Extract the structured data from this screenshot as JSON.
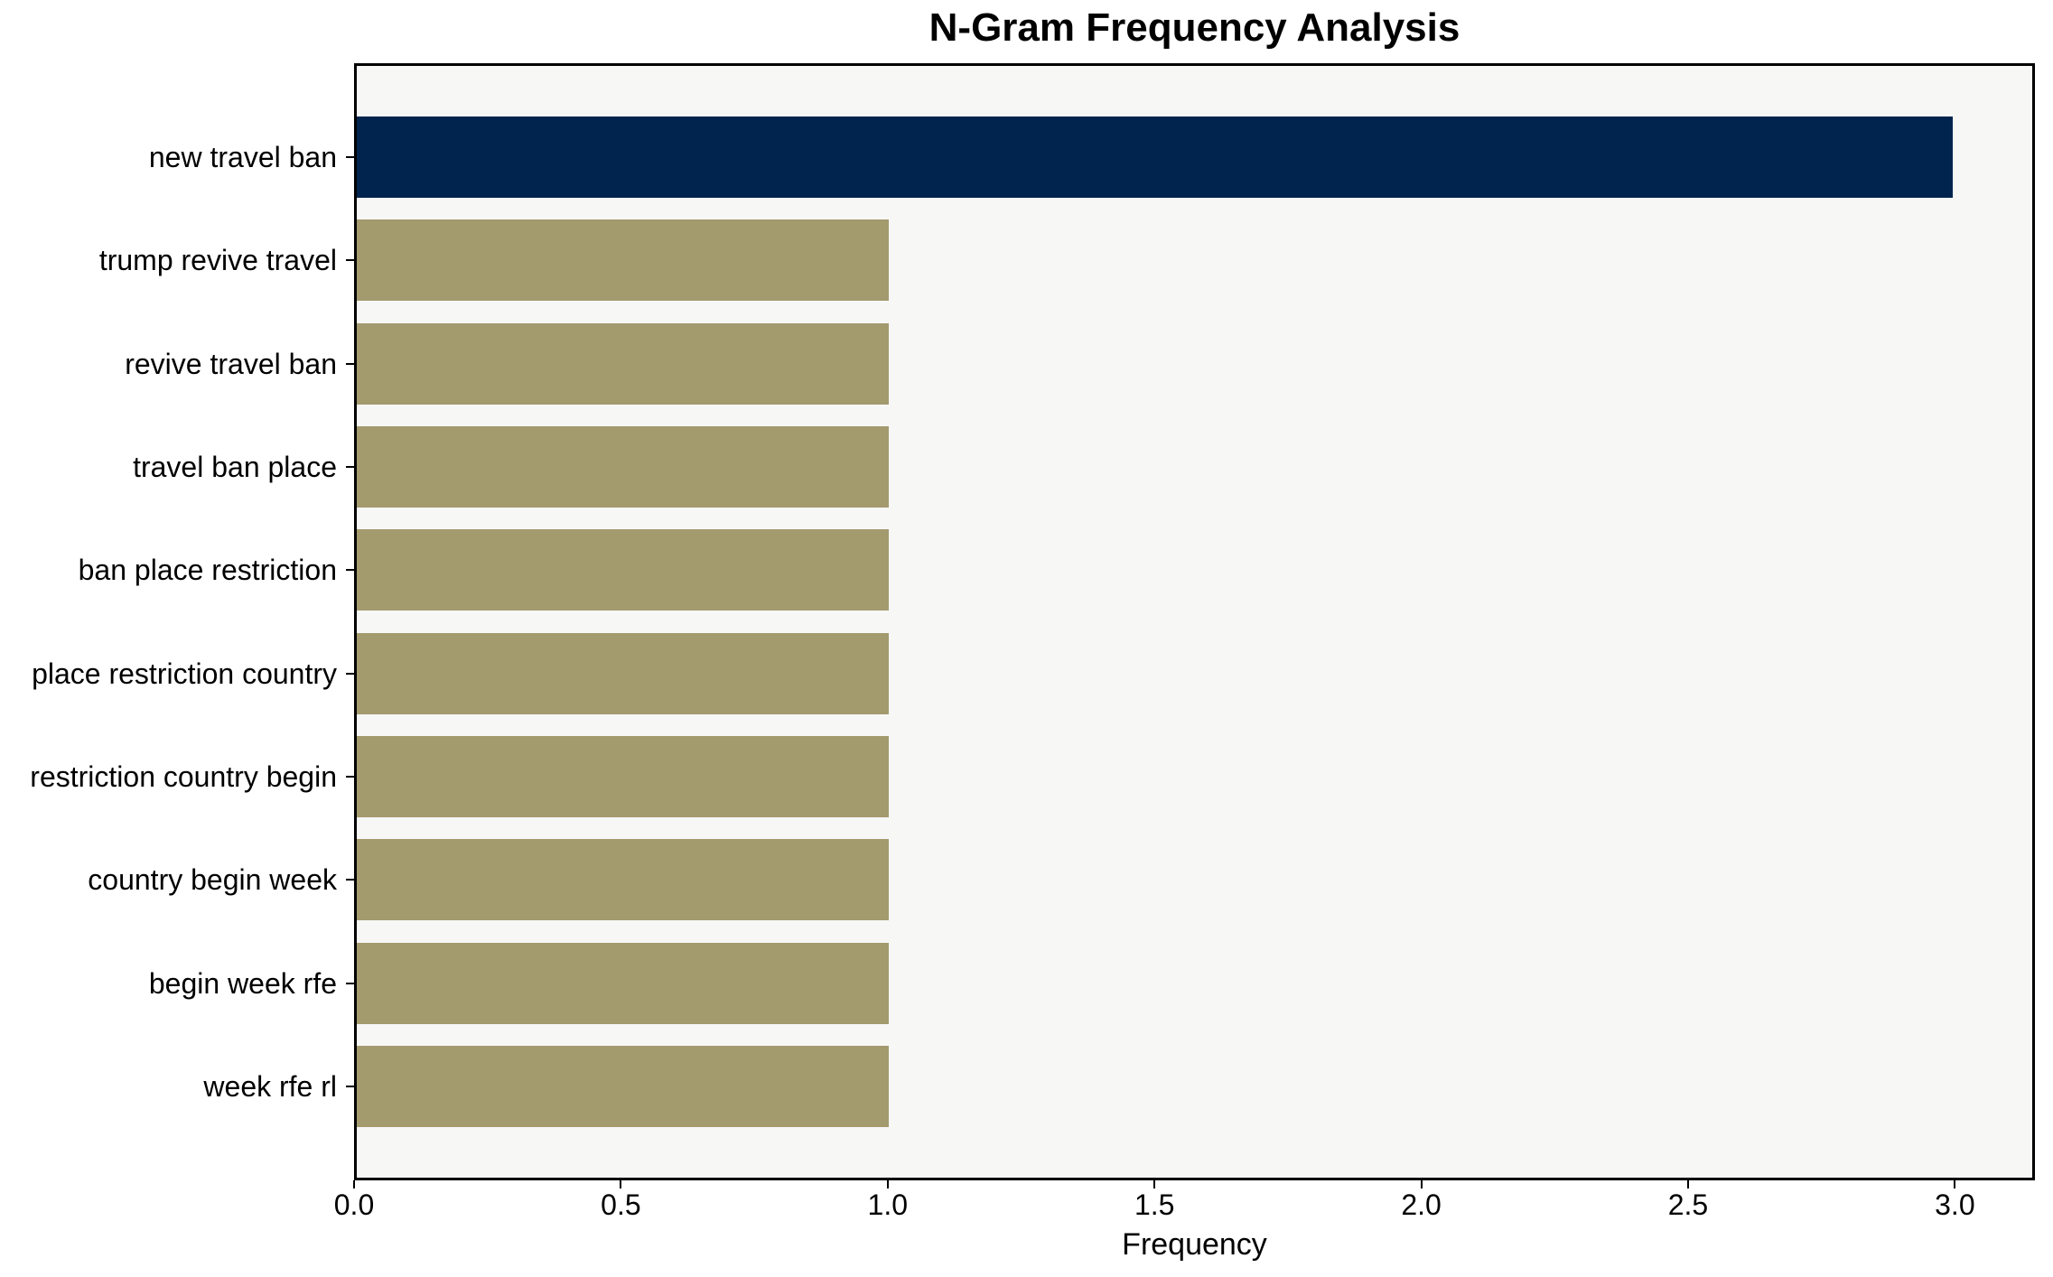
{
  "chart_data": {
    "type": "bar",
    "orientation": "horizontal",
    "title": "N-Gram Frequency Analysis",
    "xlabel": "Frequency",
    "ylabel": "",
    "categories": [
      "new travel ban",
      "trump revive travel",
      "revive travel ban",
      "travel ban place",
      "ban place restriction",
      "place restriction country",
      "restriction country begin",
      "country begin week",
      "begin week rfe",
      "week rfe rl"
    ],
    "values": [
      3,
      1,
      1,
      1,
      1,
      1,
      1,
      1,
      1,
      1
    ],
    "bar_colors": [
      "#00244E",
      "#A39A6E",
      "#A39A6E",
      "#A39A6E",
      "#A39A6E",
      "#A39A6E",
      "#A39A6E",
      "#A39A6E",
      "#A39A6E",
      "#A39A6E"
    ],
    "xlim": [
      0,
      3.15
    ],
    "xticks": [
      0.0,
      0.5,
      1.0,
      1.5,
      2.0,
      2.5,
      3.0
    ],
    "xtick_labels": [
      "0.0",
      "0.5",
      "1.0",
      "1.5",
      "2.0",
      "2.5",
      "3.0"
    ],
    "grid": false,
    "legend": null,
    "colors": {
      "highlight_bar": "#00244E",
      "default_bar": "#A39A6E",
      "plot_background": "#F7F7F6",
      "figure_background": "#FFFFFF",
      "axis": "#000000",
      "text": "#000000"
    }
  }
}
